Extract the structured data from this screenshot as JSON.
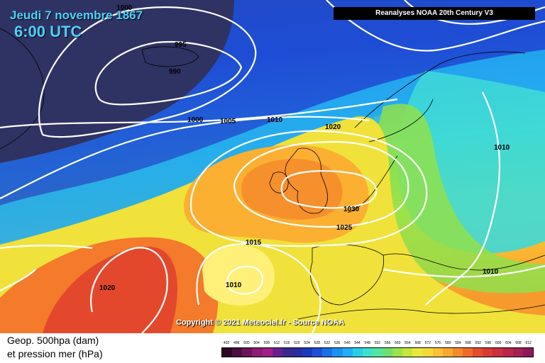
{
  "header": {
    "date": "Jeudi 7 novembre 1867",
    "time": "6:00 UTC",
    "source": "Reanalyses NOAA 20th Century V3"
  },
  "copyright": "Copyright © 2021 Meteociel.fr - Source NOAA",
  "legend": {
    "title_line1": "Geop. 500hpa (dam)",
    "title_line2": "et pression mer (hPa)",
    "scale_values": [
      "492",
      "496",
      "500",
      "504",
      "508",
      "512",
      "516",
      "520",
      "524",
      "528",
      "532",
      "536",
      "540",
      "544",
      "548",
      "552",
      "556",
      "560",
      "564",
      "568",
      "572",
      "576",
      "580",
      "584",
      "588",
      "592",
      "596",
      "600",
      "604",
      "608",
      "612"
    ],
    "scale_colors": [
      "#2d0826",
      "#4a0f3e",
      "#6b1458",
      "#8a1e74",
      "#a0208a",
      "#6b1f8c",
      "#3a2a8c",
      "#2a2e9c",
      "#1a3ab8",
      "#1f4fd6",
      "#1d6fe8",
      "#1e90f0",
      "#1fb0f4",
      "#28cde8",
      "#3ee0cc",
      "#52e6a0",
      "#6fe070",
      "#9ce24a",
      "#c6e63a",
      "#e8e83a",
      "#f6d838",
      "#fcc234",
      "#faa830",
      "#f48a2c",
      "#ee6a2a",
      "#e44c2a",
      "#d83a34",
      "#c8303e",
      "#b82848",
      "#a42052",
      "#8c1a5a"
    ]
  },
  "map_labels": {
    "isobars": [
      "1000",
      "995",
      "990",
      "1000",
      "1005",
      "1010",
      "1020",
      "1030",
      "1025",
      "1015",
      "1010",
      "1020",
      "1010",
      "1010"
    ]
  }
}
